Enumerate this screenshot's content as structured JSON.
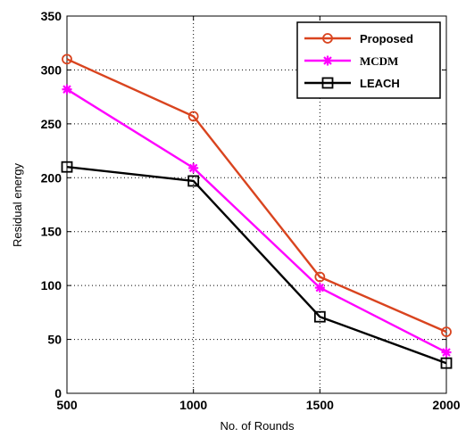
{
  "chart_data": {
    "type": "line",
    "xlabel": "No.  of Rounds",
    "ylabel": "Residual energy",
    "x": [
      500,
      1000,
      1500,
      2000
    ],
    "xlim": [
      500,
      2000
    ],
    "ylim": [
      0,
      350
    ],
    "xticks": [
      500,
      1000,
      1500,
      2000
    ],
    "yticks": [
      0,
      50,
      100,
      150,
      200,
      250,
      300,
      350
    ],
    "grid": true,
    "legend_position": "top-right",
    "series": [
      {
        "name": "Proposed",
        "values": [
          310,
          257,
          108,
          57
        ],
        "color": "#d9441f",
        "marker": "circle"
      },
      {
        "name": "MCDM",
        "values": [
          282,
          209,
          98,
          38
        ],
        "color": "#ff00ff",
        "marker": "star"
      },
      {
        "name": "LEACH",
        "values": [
          210,
          197,
          71,
          28
        ],
        "color": "#000000",
        "marker": "square"
      }
    ]
  }
}
